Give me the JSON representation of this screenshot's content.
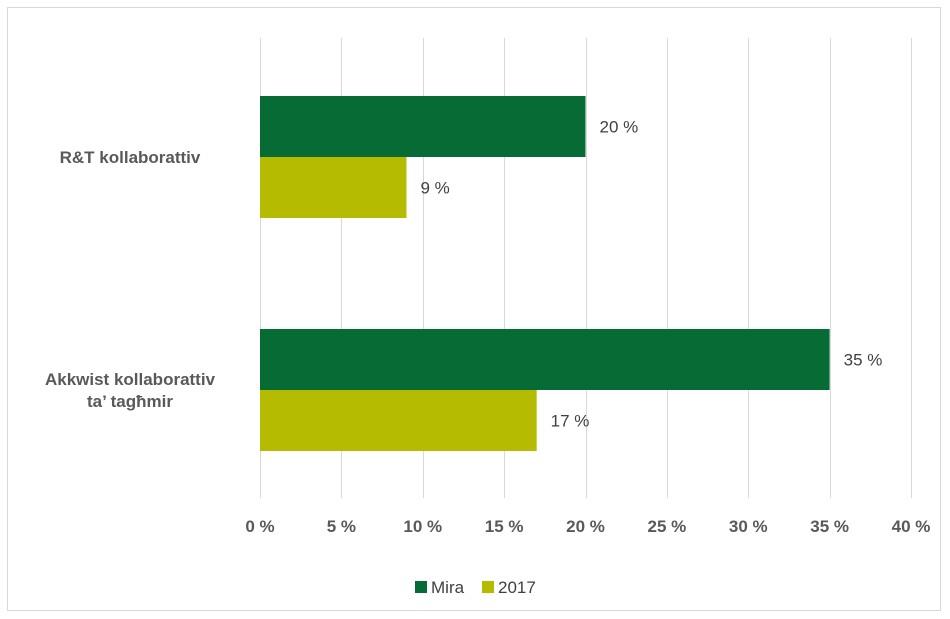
{
  "chart_data": {
    "type": "bar",
    "orientation": "horizontal",
    "categories": [
      "R&T kollaborattiv",
      "Akkwist kollaborattiv ta’ tagħmir"
    ],
    "category_label_lines": [
      [
        "R&T kollaborattiv"
      ],
      [
        "Akkwist kollaborattiv",
        "ta’ tagħmir"
      ]
    ],
    "series": [
      {
        "name": "Mira",
        "values": [
          20,
          35
        ],
        "labels": [
          "20 %",
          "35 %"
        ],
        "color": "#066b35"
      },
      {
        "name": "2017",
        "values": [
          9,
          17
        ],
        "labels": [
          "9 %",
          "17 %"
        ],
        "color": "#b5bb00"
      }
    ],
    "x_ticks": [
      0,
      5,
      10,
      15,
      20,
      25,
      30,
      35,
      40
    ],
    "x_tick_labels": [
      "0 %",
      "5 %",
      "10 %",
      "15 %",
      "20 %",
      "25 %",
      "30 %",
      "35 %",
      "40 %"
    ],
    "xlim": [
      0,
      40
    ],
    "grid": "vertical",
    "legend": "bottom-center"
  }
}
